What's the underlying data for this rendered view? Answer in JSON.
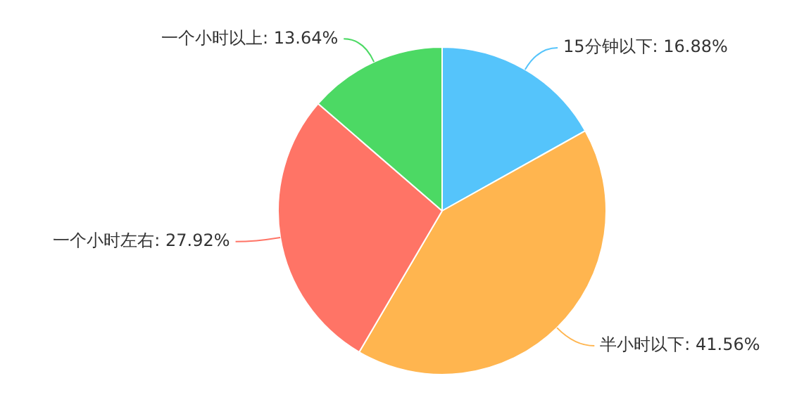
{
  "chart_data": {
    "type": "pie",
    "categories": [
      "15分钟以下",
      "半小时以下",
      "一个小时左右",
      "一个小时以上"
    ],
    "values": [
      16.88,
      41.56,
      27.92,
      13.64
    ],
    "colors": [
      "#55c4fb",
      "#ffb54f",
      "#ff7466",
      "#4cd964"
    ],
    "value_labels": [
      ": 16.88%",
      ": 41.56%",
      ": 27.92%",
      ": 13.64%"
    ],
    "legend": false
  }
}
